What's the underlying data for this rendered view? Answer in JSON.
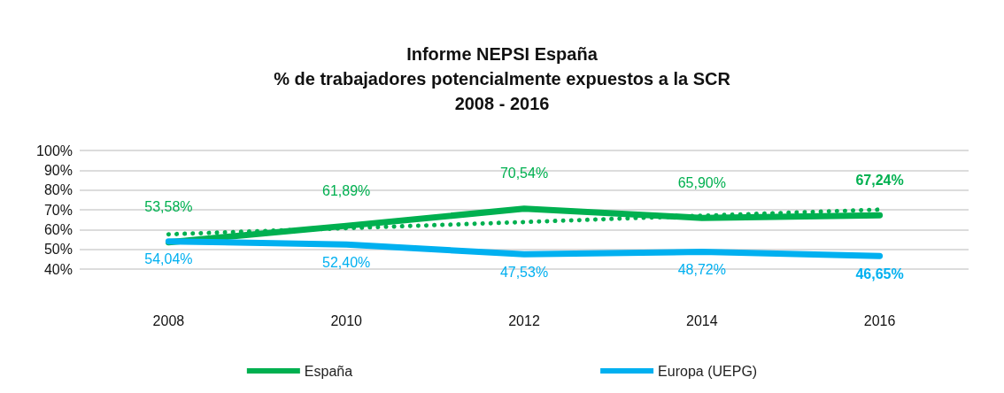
{
  "chart_data": {
    "type": "line",
    "title": "Informe NEPSI España\n% de trabajadores potencialmente expuestos a la SCR\n2008 - 2016",
    "categories": [
      "2008",
      "2010",
      "2012",
      "2014",
      "2016"
    ],
    "series": [
      {
        "name": "España",
        "color": "#00b050",
        "values": [
          53.58,
          61.89,
          70.54,
          65.9,
          67.24
        ],
        "value_labels": [
          "53,58%",
          "61,89%",
          "70,54%",
          "65,90%",
          "67,24%"
        ]
      },
      {
        "name": "Europa (UEPG)",
        "color": "#00b0f0",
        "values": [
          54.04,
          52.4,
          47.53,
          48.72,
          46.65
        ],
        "value_labels": [
          "54,04%",
          "52,40%",
          "47,53%",
          "48,72%",
          "46,65%"
        ]
      },
      {
        "color": "#00b050",
        "line_style": "dotted",
        "values": [
          57.6,
          60.7,
          63.8,
          67,
          70.1
        ]
      }
    ],
    "ylim": [
      40,
      100
    ],
    "yticks": [
      {
        "value": 40,
        "label": "40%"
      },
      {
        "value": 50,
        "label": "50%"
      },
      {
        "value": 60,
        "label": "60%"
      },
      {
        "value": 70,
        "label": "70%"
      },
      {
        "value": 80,
        "label": "80%"
      },
      {
        "value": 90,
        "label": "90%"
      },
      {
        "value": 100,
        "label": "100%"
      }
    ],
    "grid": "y",
    "legend": "bottom",
    "marker": "none"
  }
}
